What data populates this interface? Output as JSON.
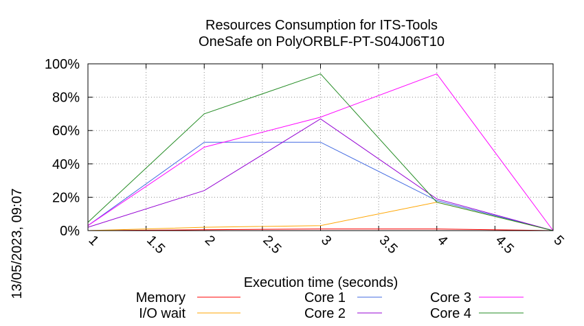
{
  "chart_data": {
    "type": "line",
    "title": "Resources Consumption for ITS-Tools",
    "subtitle": "OneSafe on PolyORBLF-PT-S04J06T10",
    "xlabel": "Execution time (seconds)",
    "ylabel": "",
    "side_label": "13/05/2023, 09:07",
    "xlim": [
      1,
      5
    ],
    "ylim": [
      0,
      100
    ],
    "x_ticks": [
      "1",
      "1.5",
      "2",
      "2.5",
      "3",
      "3.5",
      "4",
      "4.5",
      "5"
    ],
    "y_ticks": [
      "0%",
      "20%",
      "40%",
      "60%",
      "80%",
      "100%"
    ],
    "grid": true,
    "legend_position": "bottom",
    "x": [
      1,
      2,
      3,
      4,
      5
    ],
    "series": [
      {
        "name": "Memory",
        "color": "#ff0000",
        "values": [
          0,
          0.5,
          1,
          1,
          0
        ]
      },
      {
        "name": "I/O wait",
        "color": "#ffa500",
        "values": [
          0,
          2,
          3,
          17,
          0
        ]
      },
      {
        "name": "Core 1",
        "color": "#4169e1",
        "values": [
          3,
          53,
          53,
          18,
          0
        ]
      },
      {
        "name": "Core 2",
        "color": "#9400d3",
        "values": [
          2,
          24,
          67,
          19,
          0
        ]
      },
      {
        "name": "Core 3",
        "color": "#ff00ff",
        "values": [
          3,
          50,
          68,
          94,
          0
        ]
      },
      {
        "name": "Core 4",
        "color": "#228b22",
        "values": [
          5,
          70,
          94,
          17,
          0
        ]
      }
    ]
  }
}
